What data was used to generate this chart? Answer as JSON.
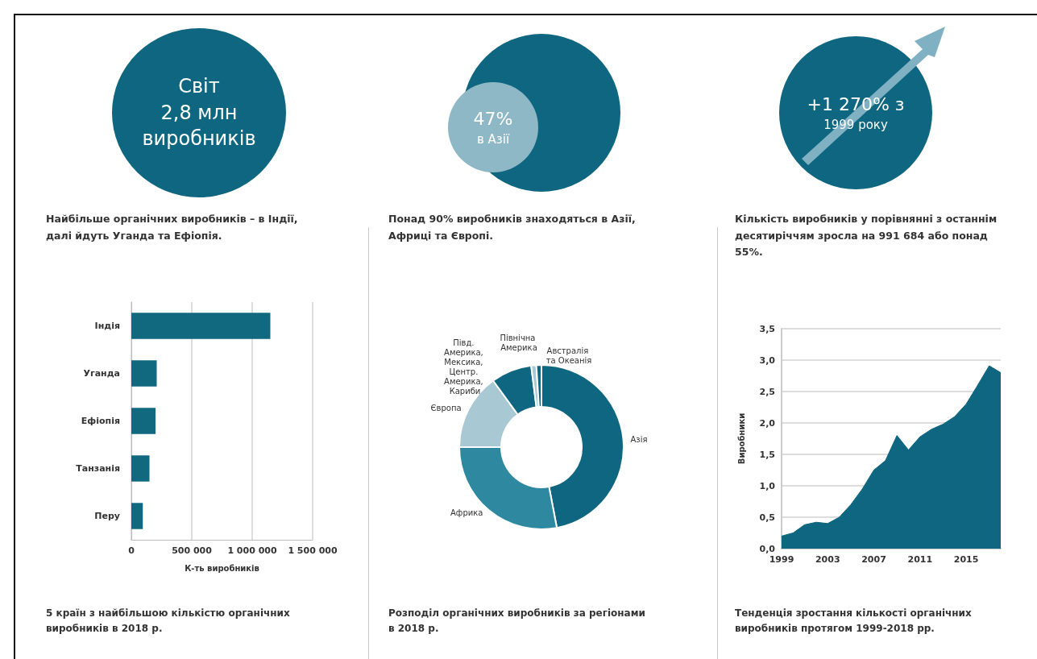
{
  "chart_data": [
    {
      "type": "bar",
      "orientation": "horizontal",
      "title": "Найбільше органічних виробників – в Індії, далі йдуть Уганда та Ефіопія.",
      "annotations": [
        "Світ\n2,8 млн\nвиробників",
        "5 країн з найбільшою кількістю органічних виробників в 2018 р."
      ],
      "categories": [
        "Індія",
        "Уганда",
        "Ефіопія",
        "Танзанія",
        "Перу"
      ],
      "values": [
        1150000,
        210000,
        200000,
        150000,
        95000
      ],
      "color": "#11697f",
      "xlim": [
        0,
        1500000
      ],
      "xticks": [
        0,
        {
          "value": 500000,
          "label": "500 000"
        },
        {
          "value": 1000000,
          "label": "1 000 000"
        },
        {
          "value": 1500000,
          "label": "1 500 000"
        }
      ],
      "xlabel": "К-ть виробників",
      "grid": "x"
    },
    {
      "type": "donut",
      "title": "Понад 90% виробників знаходяться в Азії, Африці та Європі.",
      "annotations": [
        "47%\nв Азії",
        "Розподіл органічних виробників за регіонами в 2018 р."
      ],
      "categories": [
        "Азія",
        "Африка",
        "Європа",
        "Півд. Америка, Мексика, Центр. Америка, Кариби",
        "Північна Америка",
        "Австралія та Океанія"
      ],
      "values": [
        47,
        28,
        15,
        8,
        1,
        1
      ],
      "colors": [
        "#0f6680",
        "#2e88a0",
        "#a8c8d4",
        "#0f6680",
        "#a8c8d4",
        "#0f6680"
      ]
    },
    {
      "type": "area",
      "title": "Кількість виробників у порівнянні з останнім десятиріччям зросла на 991 684 або понад 55%.",
      "annotations": [
        "+1 270% з\n1999 року",
        "Тенденція зростання кількості органічних виробників протягом 1999-2018 рр."
      ],
      "x": [
        1999,
        2000,
        2001,
        2002,
        2003,
        2004,
        2005,
        2006,
        2007,
        2008,
        2009,
        2010,
        2011,
        2012,
        2013,
        2014,
        2015,
        2016,
        2017,
        2018
      ],
      "values": [
        0.2,
        0.25,
        0.38,
        0.42,
        0.4,
        0.5,
        0.7,
        0.95,
        1.25,
        1.4,
        1.8,
        1.57,
        1.78,
        1.9,
        1.98,
        2.1,
        2.3,
        2.6,
        2.91,
        2.8
      ],
      "color": "#0f6680",
      "xlim": [
        1999,
        2018
      ],
      "xticks": [
        1999,
        2003,
        2007,
        2011,
        2015
      ],
      "ylim": [
        0,
        3.5
      ],
      "yticks": [
        {
          "value": 0,
          "label": "0,0"
        },
        {
          "value": 0.5,
          "label": "0,5"
        },
        {
          "value": 1,
          "label": "1,0"
        },
        {
          "value": 1.5,
          "label": "1,5"
        },
        {
          "value": 2,
          "label": "2,0"
        },
        {
          "value": 2.5,
          "label": "2,5"
        },
        {
          "value": 3,
          "label": "3,0"
        },
        {
          "value": 3.5,
          "label": "3,5"
        }
      ],
      "ylabel": "Виробники",
      "grid": "y"
    }
  ]
}
